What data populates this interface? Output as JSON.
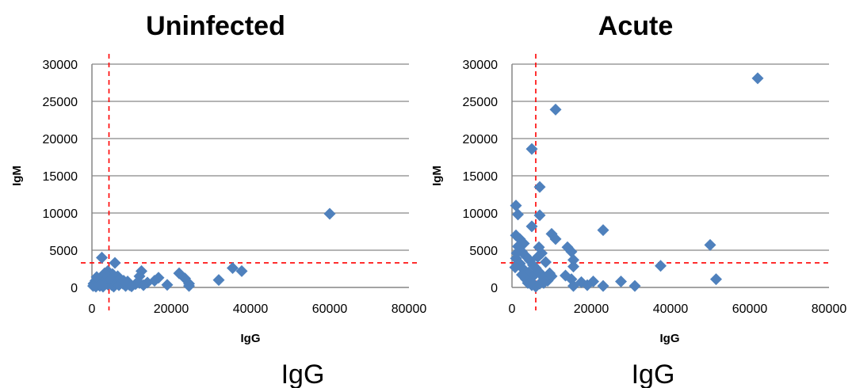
{
  "figure": {
    "colors": {
      "marker": "#4F81BD",
      "threshold": "#FF0000",
      "grid": "#868686"
    },
    "bottom_labels": [
      "IgG",
      "IgG"
    ]
  },
  "chart_data": [
    {
      "type": "scatter",
      "title": "Uninfected",
      "xlabel": "IgG",
      "ylabel": "IgM",
      "xlim": [
        0,
        80000
      ],
      "ylim": [
        0,
        30000
      ],
      "xticks": [
        "0",
        "20000",
        "40000",
        "60000",
        "80000"
      ],
      "yticks": [
        "0",
        "5000",
        "10000",
        "15000",
        "20000",
        "25000",
        "30000"
      ],
      "grid": true,
      "threshold_x": 4300,
      "threshold_y": 3300,
      "marker": "diamond",
      "points": [
        [
          60000,
          9900
        ],
        [
          2500,
          4000
        ],
        [
          5800,
          3300
        ],
        [
          35500,
          2600
        ],
        [
          37800,
          2200
        ],
        [
          12500,
          2200
        ],
        [
          22000,
          1900
        ],
        [
          12000,
          1500
        ],
        [
          16800,
          1300
        ],
        [
          23500,
          1200
        ],
        [
          15800,
          900
        ],
        [
          32000,
          1000
        ],
        [
          24500,
          500
        ],
        [
          24500,
          200
        ],
        [
          19000,
          350
        ],
        [
          14000,
          650
        ],
        [
          11000,
          450
        ],
        [
          9500,
          300
        ],
        [
          4000,
          2200
        ],
        [
          6500,
          1500
        ],
        [
          5200,
          1800
        ],
        [
          3000,
          1500
        ],
        [
          2000,
          1200
        ],
        [
          1500,
          800
        ],
        [
          900,
          900
        ],
        [
          400,
          500
        ],
        [
          300,
          200
        ],
        [
          1000,
          100
        ],
        [
          2000,
          200
        ],
        [
          2500,
          600
        ],
        [
          3500,
          900
        ],
        [
          4000,
          400
        ],
        [
          5000,
          300
        ],
        [
          6000,
          700
        ],
        [
          7000,
          1100
        ],
        [
          7800,
          500
        ],
        [
          8500,
          200
        ],
        [
          9000,
          800
        ],
        [
          10000,
          150
        ],
        [
          12000,
          600
        ],
        [
          13000,
          300
        ],
        [
          700,
          300
        ],
        [
          1800,
          500
        ],
        [
          2800,
          100
        ],
        [
          4500,
          1200
        ],
        [
          5500,
          100
        ],
        [
          6800,
          300
        ],
        [
          8000,
          900
        ],
        [
          3200,
          1900
        ],
        [
          1200,
          1400
        ]
      ]
    },
    {
      "type": "scatter",
      "title": "Acute",
      "xlabel": "IgG",
      "ylabel": "IgM",
      "xlim": [
        0,
        80000
      ],
      "ylim": [
        0,
        30000
      ],
      "xticks": [
        "0",
        "20000",
        "40000",
        "60000",
        "80000"
      ],
      "yticks": [
        "0",
        "5000",
        "10000",
        "15000",
        "20000",
        "25000",
        "30000"
      ],
      "grid": true,
      "threshold_x": 6000,
      "threshold_y": 3300,
      "marker": "diamond",
      "points": [
        [
          62000,
          28100
        ],
        [
          11000,
          23900
        ],
        [
          5000,
          18600
        ],
        [
          7000,
          13500
        ],
        [
          1000,
          11000
        ],
        [
          1500,
          9800
        ],
        [
          7000,
          9700
        ],
        [
          5000,
          8200
        ],
        [
          10000,
          7200
        ],
        [
          11000,
          6500
        ],
        [
          23000,
          7700
        ],
        [
          50000,
          5700
        ],
        [
          51500,
          1100
        ],
        [
          37500,
          2900
        ],
        [
          14000,
          5400
        ],
        [
          15000,
          4800
        ],
        [
          15500,
          3700
        ],
        [
          15500,
          2800
        ],
        [
          13500,
          1600
        ],
        [
          15000,
          1100
        ],
        [
          17500,
          700
        ],
        [
          20500,
          800
        ],
        [
          19000,
          300
        ],
        [
          23000,
          200
        ],
        [
          27500,
          800
        ],
        [
          31000,
          200
        ],
        [
          15500,
          200
        ],
        [
          1000,
          7000
        ],
        [
          2000,
          6500
        ],
        [
          3000,
          5900
        ],
        [
          1500,
          5500
        ],
        [
          2500,
          4800
        ],
        [
          3500,
          4200
        ],
        [
          4500,
          3600
        ],
        [
          1000,
          3900
        ],
        [
          2000,
          3200
        ],
        [
          800,
          2700
        ],
        [
          3000,
          2400
        ],
        [
          4200,
          2000
        ],
        [
          5500,
          1600
        ],
        [
          6500,
          4100
        ],
        [
          7500,
          4600
        ],
        [
          8500,
          3400
        ],
        [
          6000,
          2600
        ],
        [
          7000,
          2000
        ],
        [
          8000,
          1300
        ],
        [
          9000,
          900
        ],
        [
          10000,
          1500
        ],
        [
          4000,
          600
        ],
        [
          5000,
          300
        ],
        [
          6000,
          100
        ],
        [
          7000,
          500
        ],
        [
          3500,
          1100
        ],
        [
          4800,
          800
        ],
        [
          2500,
          1700
        ],
        [
          1200,
          4600
        ],
        [
          6800,
          5400
        ],
        [
          5300,
          3000
        ],
        [
          9500,
          1900
        ],
        [
          8000,
          600
        ]
      ]
    }
  ]
}
